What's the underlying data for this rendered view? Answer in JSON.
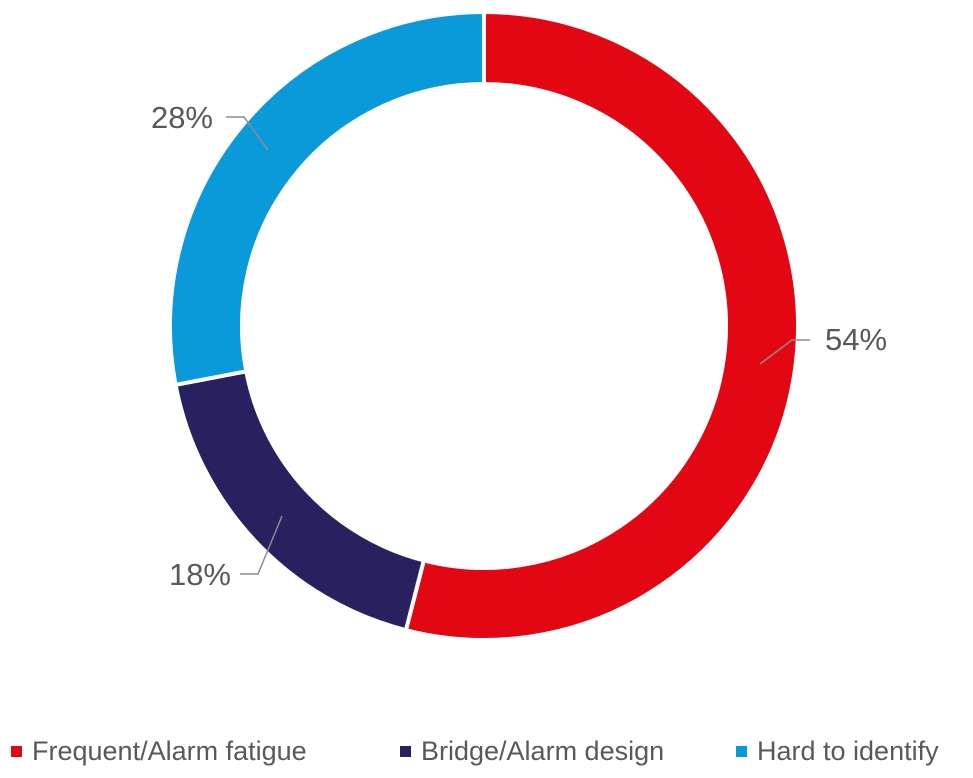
{
  "chart_data": {
    "type": "pie",
    "variant": "donut",
    "categories": [
      "Frequent/Alarm fatigue",
      "Bridge/Alarm design",
      "Hard to identify"
    ],
    "values": [
      54,
      18,
      28
    ],
    "labels": [
      "54%",
      "18%",
      "28%"
    ],
    "colors": [
      "#e30613",
      "#27225f",
      "#0a9ad9"
    ],
    "legend_position": "bottom",
    "start": "top, clockwise"
  }
}
